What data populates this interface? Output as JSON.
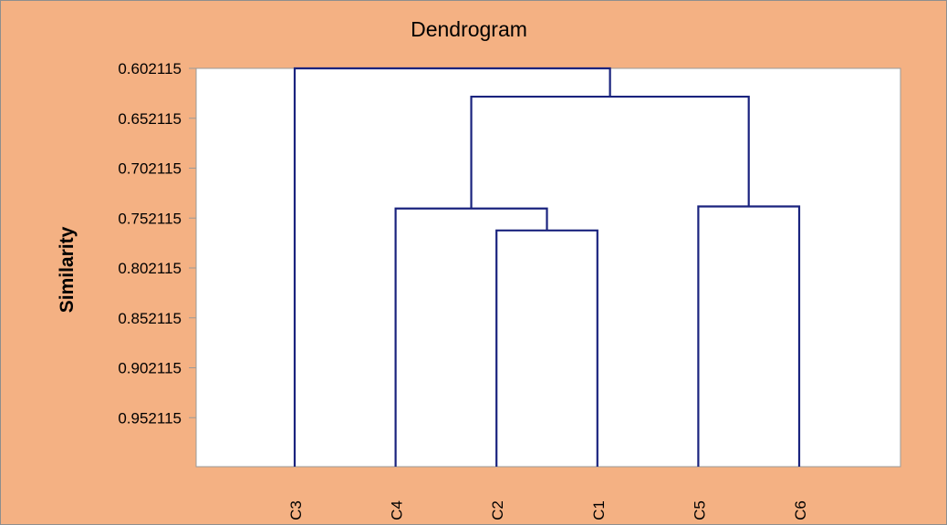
{
  "chart_data": {
    "type": "dendrogram",
    "title": "Dendrogram",
    "xlabel": "",
    "ylabel": "Similarity",
    "y_ticks": [
      "0.602115",
      "0.652115",
      "0.702115",
      "0.752115",
      "0.802115",
      "0.852115",
      "0.902115",
      "0.952115"
    ],
    "y_tick_values": [
      0.602115,
      0.652115,
      0.702115,
      0.752115,
      0.802115,
      0.852115,
      0.902115,
      0.952115
    ],
    "ylim": [
      0.602115,
      1.0
    ],
    "y_inverted": true,
    "leaves": [
      "C3",
      "C4",
      "C2",
      "C1",
      "C5",
      "C6"
    ],
    "merges": [
      {
        "left": "C2",
        "right": "C1",
        "similarity": 0.7645
      },
      {
        "left": "C4",
        "right": "C2-C1",
        "similarity": 0.7425
      },
      {
        "left": "C5",
        "right": "C6",
        "similarity": 0.7405
      },
      {
        "left": "C4-C2-C1",
        "right": "C5-C6",
        "similarity": 0.6305
      },
      {
        "left": "C3",
        "right": "C4-C2-C1-C5-C6",
        "similarity": 0.602115
      }
    ],
    "grid": false,
    "legend": "none"
  },
  "colors": {
    "background": "#F4B183",
    "plot_area": "#FFFFFF",
    "plot_border": "#9A9A9A",
    "line": "#1A237E",
    "text": "#000000",
    "frame": "#8E8E8E"
  }
}
